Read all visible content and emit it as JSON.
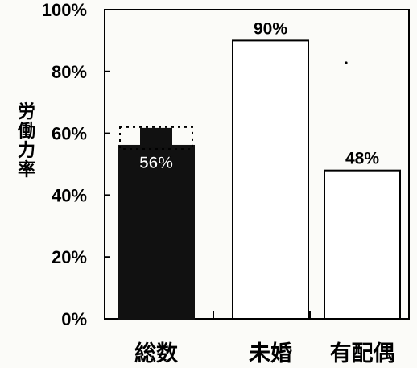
{
  "chart_data": {
    "type": "bar",
    "title": "",
    "xlabel": "",
    "ylabel": "労働力率",
    "categories": [
      "総数",
      "未婚",
      "有配偶"
    ],
    "values": [
      56,
      90,
      48
    ],
    "value_labels": [
      "56%",
      "90%",
      "48%"
    ],
    "ylim": [
      0,
      100
    ],
    "yticks": [
      0,
      20,
      40,
      60,
      80,
      100
    ],
    "ytick_labels": [
      "0%",
      "20%",
      "40%",
      "60%",
      "80%",
      "100%"
    ],
    "grid": false,
    "legend": "none",
    "colors": {
      "highlight_bar": "#111111",
      "bar_fill": "#ffffff",
      "bar_stroke": "#000000"
    },
    "highlight_index": 0
  }
}
